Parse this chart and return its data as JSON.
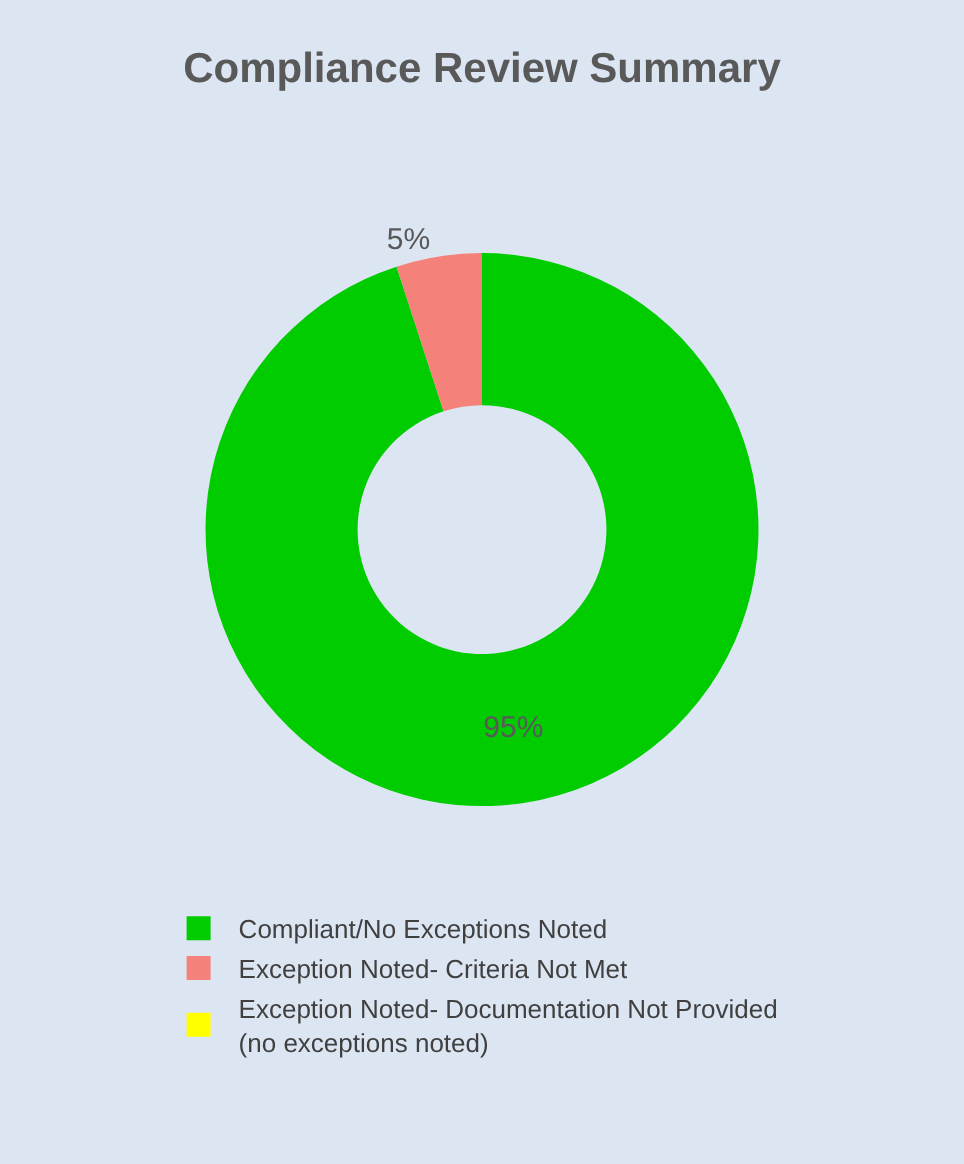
{
  "chart_data": {
    "type": "donut",
    "title": "Compliance Review Summary",
    "categories": [
      "Compliant/No Exceptions Noted",
      "Exception Noted- Criteria Not Met",
      "Exception Noted- Documentation Not Provided\n(no exceptions noted)"
    ],
    "values": [
      95,
      5,
      0
    ],
    "colors": [
      "#00cc00",
      "#f4817a",
      "#ffff00"
    ],
    "value_labels": [
      "95%",
      "5%",
      null
    ],
    "legend": "bottom"
  }
}
